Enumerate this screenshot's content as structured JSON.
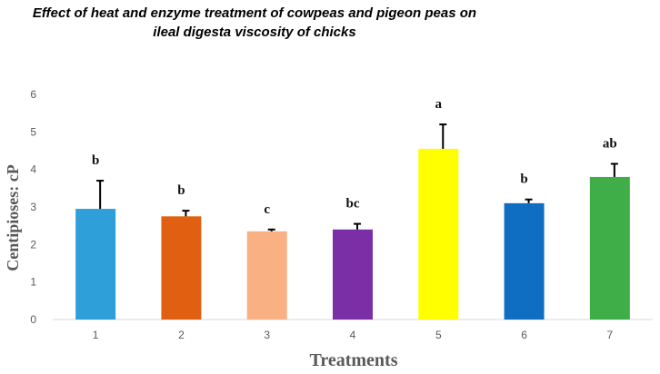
{
  "chart_data": {
    "type": "bar",
    "title_lines": [
      "Effect of heat and enzyme treatment of cowpeas and pigeon peas on",
      "ileal digesta viscosity of chicks"
    ],
    "xlabel": "Treatments",
    "ylabel": "Centipioses: cP",
    "categories": [
      "1",
      "2",
      "3",
      "4",
      "5",
      "6",
      "7"
    ],
    "values": [
      2.95,
      2.75,
      2.35,
      2.4,
      4.55,
      3.1,
      3.8
    ],
    "error": [
      0.75,
      0.15,
      0.05,
      0.15,
      0.65,
      0.1,
      0.35
    ],
    "significance": [
      "b",
      "b",
      "c",
      "bc",
      "a",
      "b",
      "ab"
    ],
    "colors": [
      "#2e9fd9",
      "#e05f10",
      "#f9b183",
      "#7b2fa6",
      "#ffff00",
      "#0f6ec1",
      "#3fae49"
    ],
    "ylim": [
      0,
      6
    ],
    "yticks": [
      0,
      1,
      2,
      3,
      4,
      5,
      6
    ],
    "grid": false,
    "legend": "none"
  }
}
